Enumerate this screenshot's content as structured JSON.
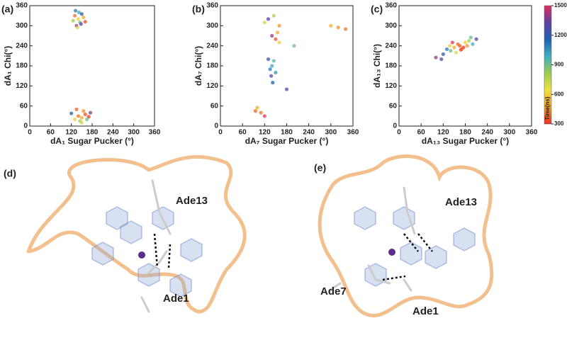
{
  "chart_data": [
    {
      "type": "scatter",
      "panel_label": "(a)",
      "xlabel": "dA₁ Sugar Pucker (°)",
      "ylabel": "dA₁ Chi(°)",
      "x": [
        130,
        140,
        145,
        150,
        135,
        125,
        155,
        142,
        138,
        148,
        132,
        160,
        140,
        150,
        160,
        130,
        155,
        145,
        170,
        120,
        165,
        135,
        175,
        150
      ],
      "values": [
        330,
        320,
        310,
        335,
        300,
        315,
        325,
        340,
        295,
        305,
        345,
        312,
        30,
        25,
        35,
        20,
        45,
        15,
        28,
        38,
        20,
        50,
        40,
        10
      ],
      "time": [
        400,
        600,
        900,
        1200,
        1400,
        800,
        500,
        1000,
        700,
        1300,
        1100,
        350,
        400,
        500,
        350,
        600,
        450,
        800,
        320,
        1200,
        900,
        380,
        1400,
        700
      ],
      "xlim": [
        0,
        360
      ],
      "ylim": [
        0,
        360
      ],
      "xticks": [
        0,
        60,
        120,
        180,
        240,
        300,
        360
      ],
      "yticks": [
        0,
        60,
        120,
        180,
        240,
        300,
        360
      ]
    },
    {
      "type": "scatter",
      "panel_label": "(b)",
      "xlabel": "dA₇ Sugar Pucker (°)",
      "ylabel": "dA₇ Chi(°)",
      "x": [
        140,
        135,
        145,
        130,
        150,
        138,
        142,
        150,
        160,
        140,
        155,
        130,
        145,
        120,
        160,
        110,
        100,
        120,
        95,
        320,
        300,
        340,
        200,
        180
      ],
      "values": [
        180,
        170,
        195,
        200,
        160,
        150,
        130,
        260,
        250,
        270,
        280,
        320,
        330,
        310,
        300,
        40,
        55,
        30,
        45,
        295,
        300,
        290,
        240,
        110
      ],
      "time": [
        1000,
        1100,
        950,
        1200,
        1050,
        1250,
        1150,
        350,
        600,
        1400,
        500,
        1300,
        800,
        700,
        450,
        400,
        500,
        1500,
        380,
        450,
        500,
        400,
        900,
        1300
      ],
      "xlim": [
        0,
        360
      ],
      "ylim": [
        0,
        360
      ],
      "xticks": [
        0,
        60,
        120,
        180,
        240,
        300,
        360
      ],
      "yticks": [
        0,
        60,
        120,
        180,
        240,
        300,
        360
      ]
    },
    {
      "type": "scatter",
      "panel_label": "(c)",
      "xlabel": "dA₁₃ Sugar Pucker (°)",
      "ylabel": "dA₁₃ Chi(°)",
      "x": [
        100,
        120,
        140,
        150,
        165,
        170,
        180,
        160,
        190,
        200,
        210,
        130,
        175,
        155,
        185,
        145,
        115,
        195,
        168,
        138
      ],
      "values": [
        205,
        215,
        225,
        235,
        240,
        230,
        250,
        245,
        255,
        245,
        260,
        230,
        235,
        220,
        240,
        250,
        200,
        265,
        228,
        240
      ],
      "time": [
        1400,
        1200,
        900,
        500,
        350,
        400,
        600,
        380,
        800,
        1000,
        1300,
        1100,
        320,
        700,
        450,
        1500,
        1300,
        900,
        340,
        600
      ],
      "xlim": [
        0,
        360
      ],
      "ylim": [
        0,
        360
      ],
      "xticks": [
        0,
        60,
        120,
        180,
        240,
        300,
        360
      ],
      "yticks": [
        0,
        60,
        120,
        180,
        240,
        300,
        360
      ],
      "colorbar": {
        "label": "Time(ns)",
        "lim": [
          300,
          1500
        ],
        "ticks": [
          300,
          600,
          900,
          1200,
          1500
        ]
      }
    }
  ],
  "colormap": [
    "#e8302a",
    "#f5a020",
    "#f0e040",
    "#9acd50",
    "#40b0c0",
    "#2060b0",
    "#6040a0",
    "#e03060"
  ],
  "figures": [
    {
      "label": "(d)",
      "residues": [
        "Ade13",
        "Ade1"
      ]
    },
    {
      "label": "(e)",
      "residues": [
        "Ade13",
        "Ade7",
        "Ade1"
      ]
    }
  ]
}
